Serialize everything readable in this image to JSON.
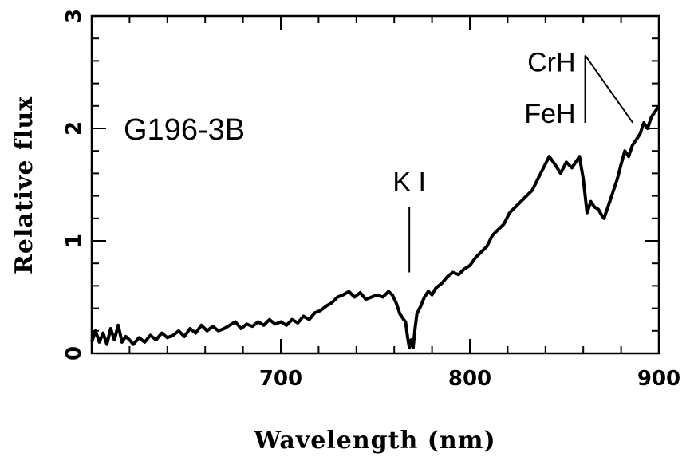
{
  "chart_data": {
    "type": "line",
    "title": "",
    "object_label": "G196-3B",
    "xlabel": "Wavelength (nm)",
    "ylabel": "Relative flux",
    "xlim": [
      600,
      900
    ],
    "ylim": [
      0,
      3
    ],
    "x_ticks": [
      700,
      800,
      900
    ],
    "y_ticks": [
      0,
      1,
      2,
      3
    ],
    "x_tick_labels": [
      "700",
      "800",
      "900"
    ],
    "y_tick_labels": [
      "0",
      "1",
      "2",
      "3"
    ],
    "grid": false,
    "legend": "none",
    "color": "#000000",
    "annotations": [
      {
        "text": "K I",
        "x": 768,
        "y_top": 1.3,
        "y_bottom": 0.72
      },
      {
        "text": "CrH",
        "x": 861,
        "y_top": 2.65,
        "y_bottom": 2.05
      },
      {
        "text": "FeH",
        "x": 861,
        "y_top": 2.65,
        "y_bottom": 2.05,
        "x_end": 871
      }
    ],
    "series": [
      {
        "x": [
          600,
          602,
          604,
          606,
          608,
          610,
          612,
          614,
          616,
          618,
          620,
          622,
          625,
          628,
          631,
          634,
          637,
          640,
          643,
          646,
          649,
          652,
          655,
          658,
          661,
          664,
          667,
          670,
          673,
          676,
          679,
          682,
          685,
          688,
          691,
          694,
          697,
          700,
          703,
          706,
          709,
          712,
          715,
          718,
          721,
          724,
          727,
          730,
          733,
          736,
          739,
          742,
          745,
          748,
          751,
          754,
          757,
          759,
          761,
          763,
          765,
          766,
          767,
          768,
          769,
          770,
          771,
          772,
          774,
          776,
          778,
          780,
          782,
          785,
          788,
          791,
          794,
          797,
          800,
          803,
          806,
          809,
          812,
          815,
          818,
          821,
          824,
          827,
          830,
          833,
          836,
          839,
          842,
          845,
          848,
          851,
          854,
          856,
          858,
          859,
          860,
          861,
          862,
          863,
          864,
          866,
          868,
          870,
          871,
          872,
          874,
          876,
          878,
          880,
          882,
          884,
          886,
          888,
          890,
          892,
          894,
          896,
          898,
          900
        ],
        "y": [
          0.1,
          0.2,
          0.1,
          0.18,
          0.08,
          0.22,
          0.12,
          0.25,
          0.1,
          0.15,
          0.12,
          0.08,
          0.14,
          0.1,
          0.16,
          0.12,
          0.18,
          0.14,
          0.16,
          0.2,
          0.15,
          0.22,
          0.18,
          0.25,
          0.2,
          0.24,
          0.2,
          0.22,
          0.25,
          0.28,
          0.22,
          0.26,
          0.24,
          0.28,
          0.25,
          0.3,
          0.26,
          0.28,
          0.25,
          0.3,
          0.27,
          0.33,
          0.3,
          0.36,
          0.38,
          0.42,
          0.45,
          0.5,
          0.52,
          0.55,
          0.5,
          0.54,
          0.48,
          0.5,
          0.52,
          0.5,
          0.55,
          0.52,
          0.45,
          0.35,
          0.3,
          0.28,
          0.15,
          0.05,
          0.12,
          0.05,
          0.22,
          0.35,
          0.42,
          0.5,
          0.55,
          0.52,
          0.58,
          0.62,
          0.68,
          0.72,
          0.7,
          0.75,
          0.78,
          0.85,
          0.9,
          0.95,
          1.05,
          1.1,
          1.15,
          1.25,
          1.3,
          1.35,
          1.4,
          1.45,
          1.55,
          1.65,
          1.75,
          1.68,
          1.6,
          1.7,
          1.65,
          1.7,
          1.75,
          1.65,
          1.55,
          1.4,
          1.25,
          1.3,
          1.35,
          1.3,
          1.28,
          1.22,
          1.2,
          1.25,
          1.35,
          1.45,
          1.55,
          1.68,
          1.8,
          1.75,
          1.85,
          1.9,
          1.95,
          2.05,
          2.0,
          2.1,
          2.15,
          2.2
        ]
      }
    ]
  }
}
